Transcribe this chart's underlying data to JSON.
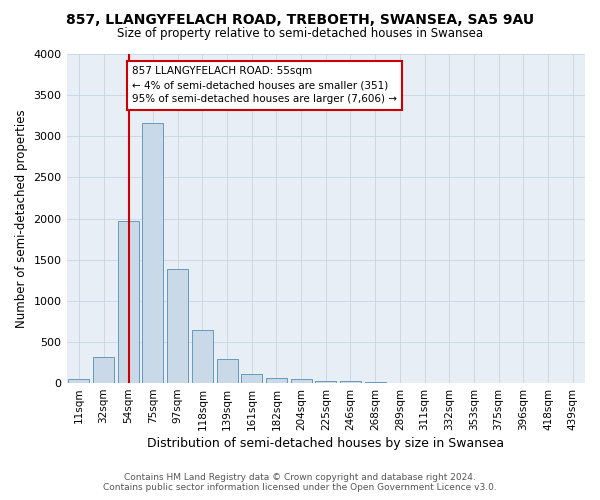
{
  "title": "857, LLANGYFELACH ROAD, TREBOETH, SWANSEA, SA5 9AU",
  "subtitle": "Size of property relative to semi-detached houses in Swansea",
  "xlabel": "Distribution of semi-detached houses by size in Swansea",
  "ylabel": "Number of semi-detached properties",
  "footer_line1": "Contains HM Land Registry data © Crown copyright and database right 2024.",
  "footer_line2": "Contains public sector information licensed under the Open Government Licence v3.0.",
  "categories": [
    "11sqm",
    "32sqm",
    "54sqm",
    "75sqm",
    "97sqm",
    "118sqm",
    "139sqm",
    "161sqm",
    "182sqm",
    "204sqm",
    "225sqm",
    "246sqm",
    "268sqm",
    "289sqm",
    "311sqm",
    "332sqm",
    "353sqm",
    "375sqm",
    "396sqm",
    "418sqm",
    "439sqm"
  ],
  "bar_heights": [
    50,
    320,
    1970,
    3160,
    1390,
    640,
    295,
    110,
    65,
    55,
    30,
    20,
    10,
    5,
    5,
    5,
    5,
    5,
    5,
    5,
    5
  ],
  "bar_color": "#c9d9e8",
  "bar_edge_color": "#6699bb",
  "grid_color": "#c8d4e4",
  "background_color": "#e8eef6",
  "property_label": "857 LLANGYFELACH ROAD: 55sqm",
  "pct_smaller": 4,
  "pct_smaller_count": 351,
  "pct_larger": 95,
  "pct_larger_count": 7606,
  "annotation_box_color": "#cc0000",
  "vline_color": "#cc0000",
  "vline_position": 2.05,
  "ylim": [
    0,
    4000
  ],
  "yticks": [
    0,
    500,
    1000,
    1500,
    2000,
    2500,
    3000,
    3500,
    4000
  ]
}
